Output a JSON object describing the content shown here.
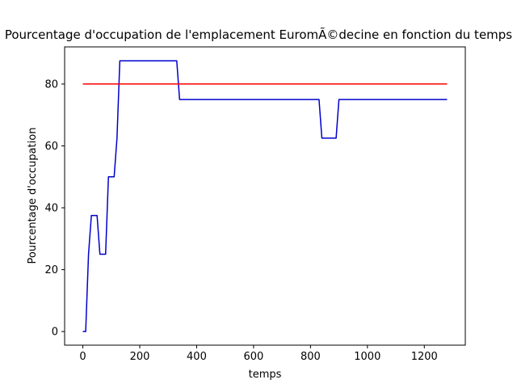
{
  "chart_data": {
    "type": "line",
    "title": "Pourcentage d'occupation de l'emplacement EuromÃ©decine en fonction du temps",
    "xlabel": "temps",
    "ylabel": "Pourcentage d'occupation",
    "xlim": [
      -64,
      1344
    ],
    "ylim": [
      -4.4,
      92
    ],
    "xticks": [
      0,
      200,
      400,
      600,
      800,
      1000,
      1200
    ],
    "yticks": [
      0,
      20,
      40,
      60,
      80
    ],
    "grid": false,
    "series": [
      {
        "color": "#0000cc",
        "x": [
          0,
          10,
          20,
          30,
          50,
          60,
          80,
          90,
          110,
          120,
          130,
          140,
          320,
          330,
          340,
          350,
          830,
          840,
          890,
          900,
          1280
        ],
        "y": [
          0,
          0,
          25,
          37.5,
          37.5,
          25,
          25,
          50,
          50,
          62.5,
          87.5,
          87.5,
          87.5,
          87.5,
          75,
          75,
          75,
          62.5,
          62.5,
          75,
          75
        ]
      },
      {
        "color": "#ff0000",
        "x": [
          0,
          1280
        ],
        "y": [
          80,
          80
        ]
      }
    ]
  }
}
